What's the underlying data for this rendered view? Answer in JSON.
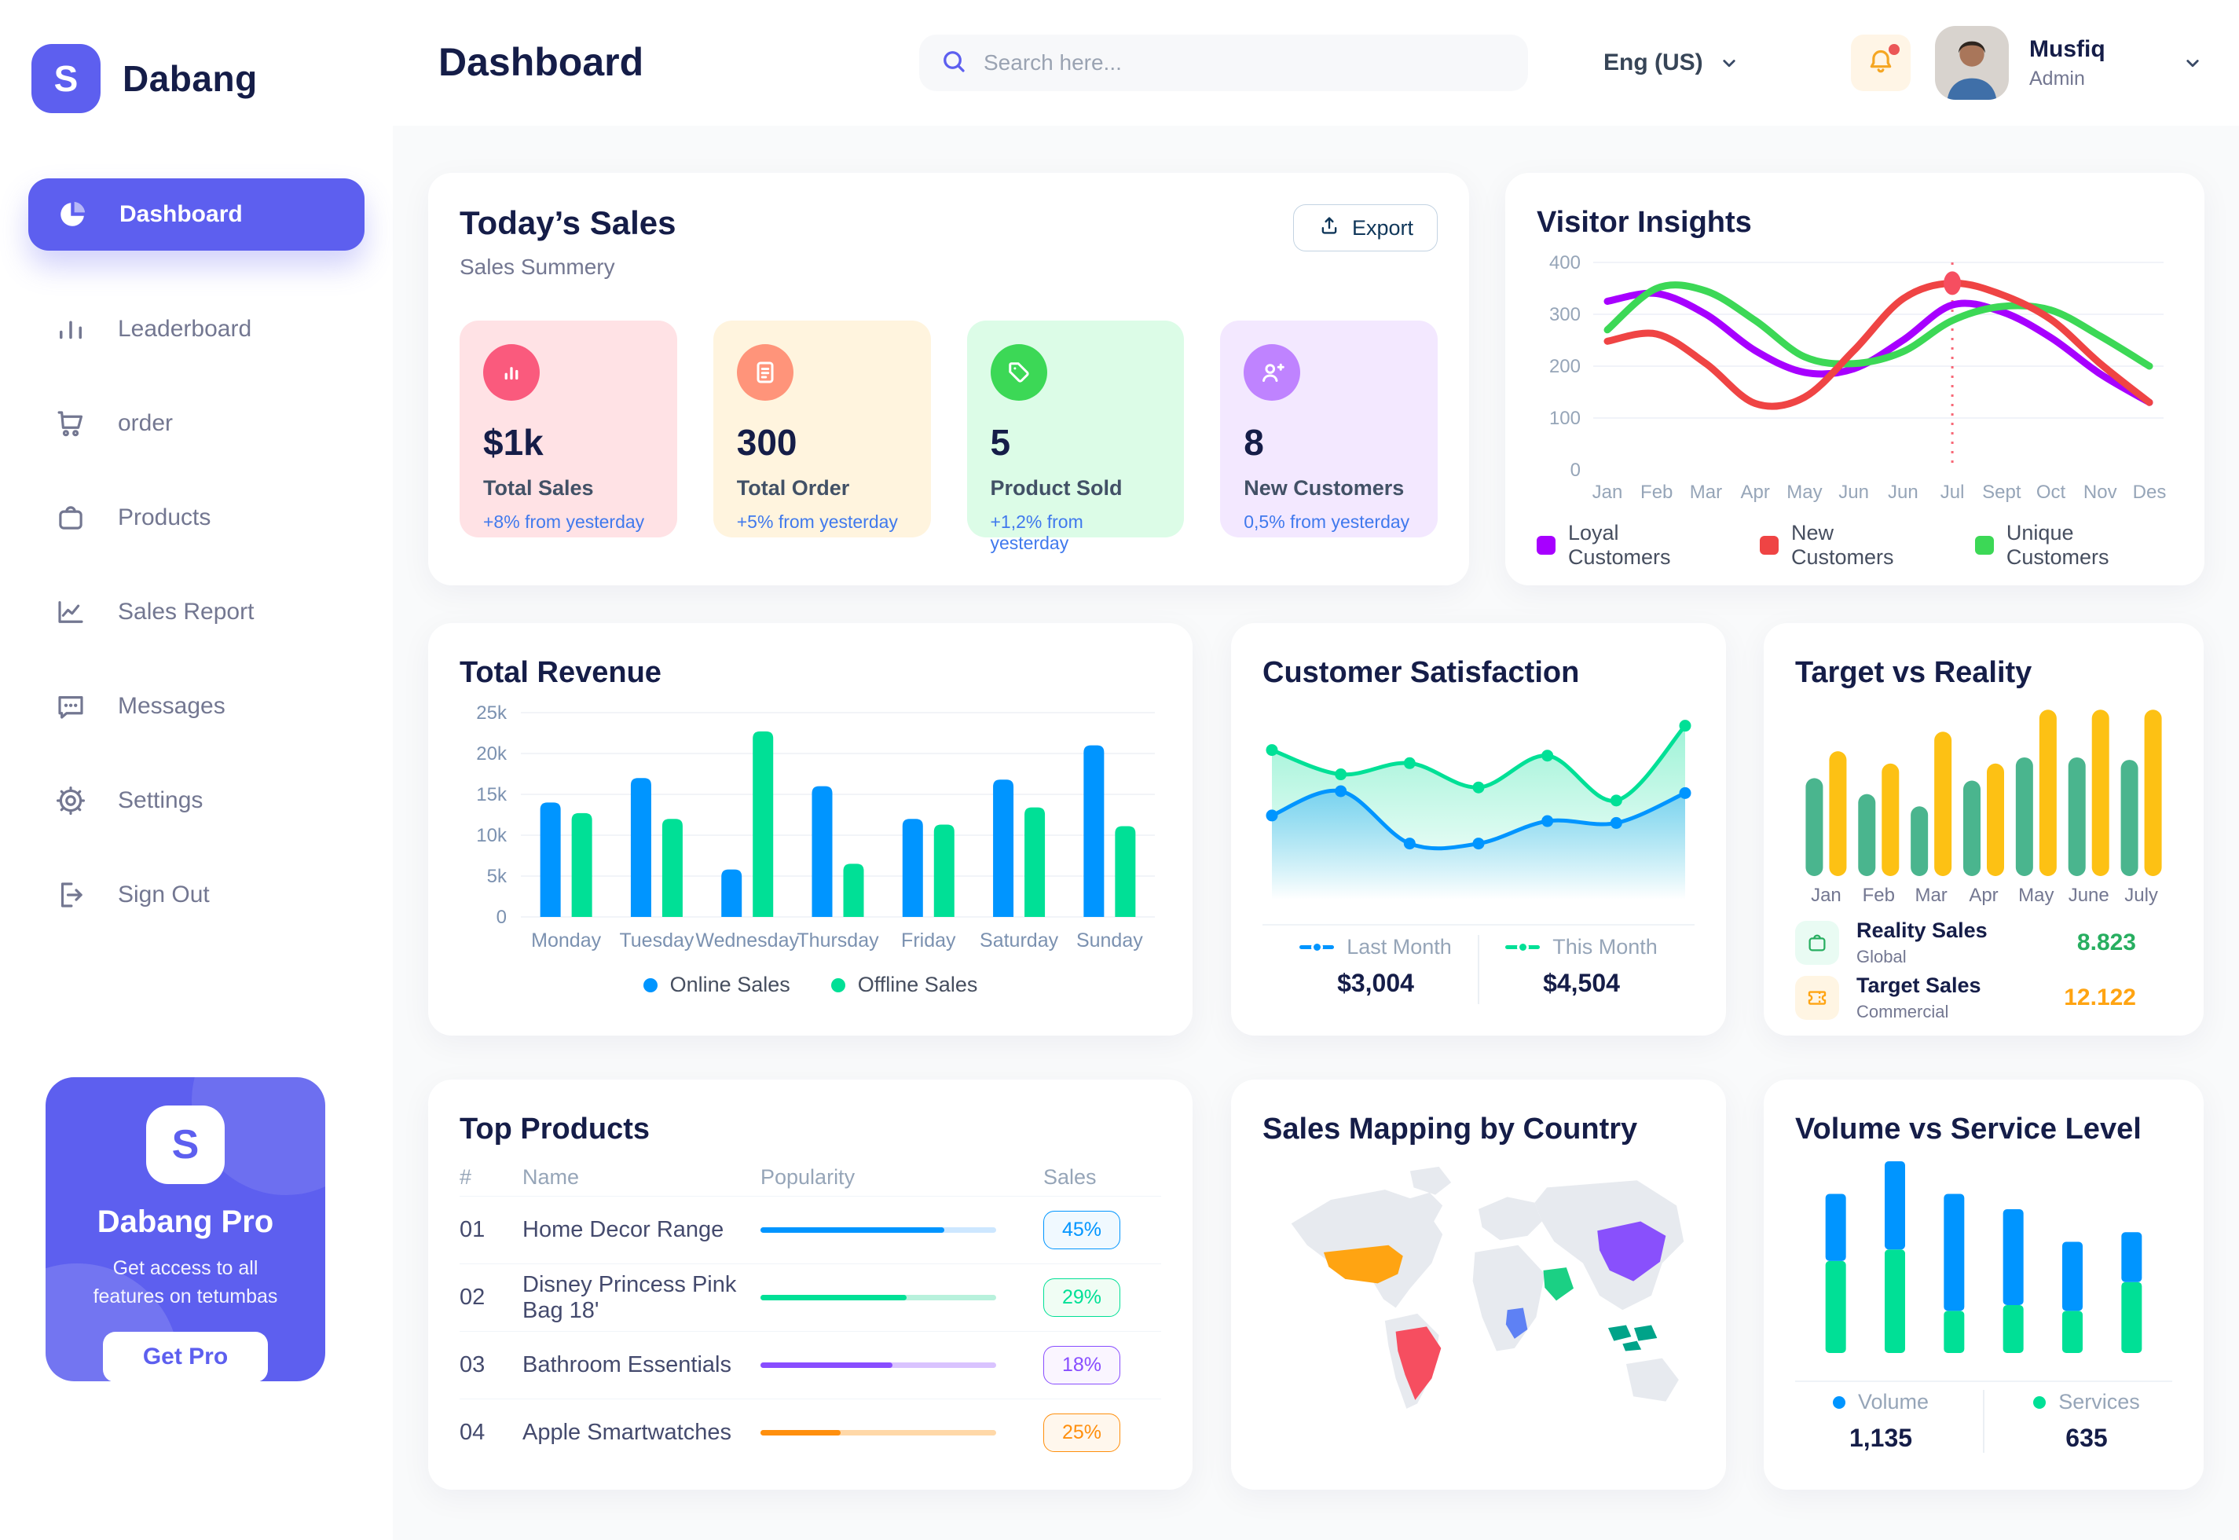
{
  "app": {
    "name": "Dabang"
  },
  "header": {
    "title": "Dashboard",
    "search": {
      "placeholder": "Search here..."
    },
    "language": {
      "label": "Eng (US)"
    },
    "user": {
      "name": "Musfiq",
      "role": "Admin"
    }
  },
  "sidebar": {
    "items": [
      {
        "label": "Dashboard",
        "icon": "pie-chart-icon",
        "active": true
      },
      {
        "label": "Leaderboard",
        "icon": "bar-chart-icon",
        "active": false
      },
      {
        "label": "order",
        "icon": "cart-icon",
        "active": false
      },
      {
        "label": "Products",
        "icon": "bag-icon",
        "active": false
      },
      {
        "label": "Sales Report",
        "icon": "line-chart-icon",
        "active": false
      },
      {
        "label": "Messages",
        "icon": "message-icon",
        "active": false
      },
      {
        "label": "Settings",
        "icon": "gear-icon",
        "active": false
      },
      {
        "label": "Sign Out",
        "icon": "sign-out-icon",
        "active": false
      }
    ],
    "pro": {
      "title": "Dabang Pro",
      "subtitle": "Get access to all features on tetumbas",
      "cta": "Get Pro"
    }
  },
  "todays_sales": {
    "title": "Today’s Sales",
    "subtitle": "Sales Summery",
    "export_label": "Export",
    "cards": [
      {
        "value": "$1k",
        "label": "Total Sales",
        "delta": "+8% from yesterday",
        "bg": "#FFE2E5",
        "accent": "#FA5A7D",
        "icon": "chart-icon"
      },
      {
        "value": "300",
        "label": "Total Order",
        "delta": "+5% from yesterday",
        "bg": "#FFF4DE",
        "accent": "#FF947A",
        "icon": "order-icon"
      },
      {
        "value": "5",
        "label": "Product Sold",
        "delta": "+1,2% from yesterday",
        "bg": "#DCFCE7",
        "accent": "#3CD856",
        "icon": "tag-icon"
      },
      {
        "value": "8",
        "label": "New Customers",
        "delta": "0,5% from yesterday",
        "bg": "#F3E8FF",
        "accent": "#BF83FF",
        "icon": "user-plus-icon"
      }
    ]
  },
  "chart_data": [
    {
      "id": "visitor_insights",
      "type": "line",
      "title": "Visitor Insights",
      "x": [
        "Jan",
        "Feb",
        "Mar",
        "Apr",
        "May",
        "Jun",
        "Jun",
        "Jul",
        "Sept",
        "Oct",
        "Nov",
        "Des"
      ],
      "ylim": [
        0,
        400
      ],
      "yticks": [
        0,
        100,
        200,
        300,
        400
      ],
      "grid": true,
      "legend_position": "bottom",
      "series": [
        {
          "name": "Loyal Customers",
          "color": "#A700FF",
          "values": [
            325,
            340,
            300,
            230,
            188,
            195,
            250,
            318,
            305,
            255,
            185,
            130
          ]
        },
        {
          "name": "New Customers",
          "color": "#EF4444",
          "values": [
            248,
            262,
            205,
            128,
            140,
            230,
            330,
            360,
            338,
            290,
            205,
            130
          ]
        },
        {
          "name": "Unique Customers",
          "color": "#3CD856",
          "values": [
            270,
            350,
            345,
            288,
            218,
            205,
            228,
            288,
            315,
            308,
            258,
            200
          ]
        }
      ],
      "draw_order": [
        0,
        2,
        1
      ],
      "annotation": {
        "x_index": 7,
        "x_label": "Jul",
        "series_index": 1,
        "color": "#F64E60"
      }
    },
    {
      "id": "total_revenue",
      "type": "grouped-bar",
      "title": "Total Revenue",
      "categories": [
        "Monday",
        "Tuesday",
        "Wednesday",
        "Thursday",
        "Friday",
        "Saturday",
        "Sunday"
      ],
      "ylim": [
        0,
        25000
      ],
      "yticks": [
        0,
        5000,
        10000,
        15000,
        20000,
        25000
      ],
      "ytick_labels": [
        "0",
        "5k",
        "10k",
        "15k",
        "20k",
        "25k"
      ],
      "grid": true,
      "legend_position": "bottom",
      "series": [
        {
          "name": "Online Sales",
          "color": "#0095FF",
          "values": [
            14000,
            17000,
            5800,
            16000,
            12000,
            16800,
            21000
          ]
        },
        {
          "name": "Offline Sales",
          "color": "#00E096",
          "values": [
            12700,
            12000,
            22700,
            6500,
            11300,
            13400,
            11100
          ]
        }
      ]
    },
    {
      "id": "customer_satisfaction",
      "type": "area",
      "title": "Customer Satisfaction",
      "ylim": [
        0,
        100
      ],
      "grid": false,
      "legend_position": "bottom",
      "series": [
        {
          "name": "Last Month",
          "color": "#0095FF",
          "total": "$3,004",
          "values": [
            45,
            58,
            30,
            30,
            42,
            41,
            57
          ]
        },
        {
          "name": "This Month",
          "color": "#00E096",
          "total": "$4,504",
          "values": [
            80,
            67,
            73,
            60,
            77,
            53,
            93
          ]
        }
      ],
      "draw_order": [
        1,
        0
      ]
    },
    {
      "id": "target_vs_reality",
      "type": "pill-bar",
      "title": "Target vs Reality",
      "categories": [
        "Jan",
        "Feb",
        "Mar",
        "Apr",
        "May",
        "June",
        "July"
      ],
      "ylim": [
        0,
        14
      ],
      "grid": false,
      "legend_position": "bottom",
      "series": [
        {
          "name": "Reality Sales",
          "subtitle": "Global",
          "color": "#4AB58E",
          "icon": "bag-icon",
          "icon_bg": "#E9FBF3",
          "value": "8.823",
          "value_color": "#27AE60",
          "values": [
            8.0,
            6.7,
            5.7,
            7.8,
            9.7,
            9.7,
            9.5
          ]
        },
        {
          "name": "Target Sales",
          "subtitle": "Commercial",
          "color": "#FDC114",
          "icon": "ticket-icon",
          "icon_bg": "#FFF5E3",
          "value": "12.122",
          "value_color": "#FFA412",
          "values": [
            10.2,
            9.2,
            11.8,
            9.2,
            13.6,
            13.6,
            13.6
          ]
        }
      ]
    },
    {
      "id": "volume_vs_service",
      "type": "stacked-bar",
      "title": "Volume vs Service Level",
      "ylim": [
        0,
        100
      ],
      "grid": false,
      "legend_position": "bottom",
      "series": [
        {
          "name": "Volume",
          "color": "#0095FF",
          "total": "1,135",
          "values": [
            35,
            46,
            61,
            50,
            36,
            26
          ]
        },
        {
          "name": "Services",
          "color": "#00E096",
          "total": "635",
          "values": [
            48,
            54,
            22,
            25,
            22,
            37
          ]
        }
      ],
      "stack_bottom_index": 1
    }
  ],
  "top_products": {
    "title": "Top Products",
    "columns": [
      "#",
      "Name",
      "Popularity",
      "Sales"
    ],
    "rows": [
      {
        "num": "01",
        "name": "Home Decor Range",
        "popularity": 78,
        "sales": "45%",
        "color": "#0095FF",
        "track": "#CDE7FF",
        "badge_bg": "#F0F9FF"
      },
      {
        "num": "02",
        "name": "Disney Princess Pink Bag 18'",
        "popularity": 62,
        "sales": "29%",
        "color": "#00E096",
        "track": "#B8F1DC",
        "badge_bg": "#F0FDF4"
      },
      {
        "num": "03",
        "name": "Bathroom Essentials",
        "popularity": 56,
        "sales": "18%",
        "color": "#884DFF",
        "track": "#D9C3FF",
        "badge_bg": "#FAF5FF"
      },
      {
        "num": "04",
        "name": "Apple Smartwatches",
        "popularity": 34,
        "sales": "25%",
        "color": "#FF8F0D",
        "track": "#FFD8A8",
        "badge_bg": "#FFF7ED"
      }
    ]
  },
  "sales_mapping": {
    "title": "Sales Mapping by Country",
    "countries": [
      {
        "key": "usa",
        "name": "United States",
        "color": "#FFA412"
      },
      {
        "key": "brazil",
        "name": "Brazil",
        "color": "#F64E60"
      },
      {
        "key": "china",
        "name": "China",
        "color": "#8950FC"
      },
      {
        "key": "saudi",
        "name": "Saudi Arabia",
        "color": "#1BD084"
      },
      {
        "key": "congo",
        "name": "DR Congo",
        "color": "#5E81F4"
      },
      {
        "key": "indonesia",
        "name": "Indonesia",
        "color": "#00A389"
      }
    ]
  },
  "colors": {
    "accent": "#5D5FEF",
    "navy": "#151D48",
    "gray": "#737791",
    "axis": "#96A5B8",
    "bell": "#FFA412",
    "notification_dot": "#EB5757"
  }
}
